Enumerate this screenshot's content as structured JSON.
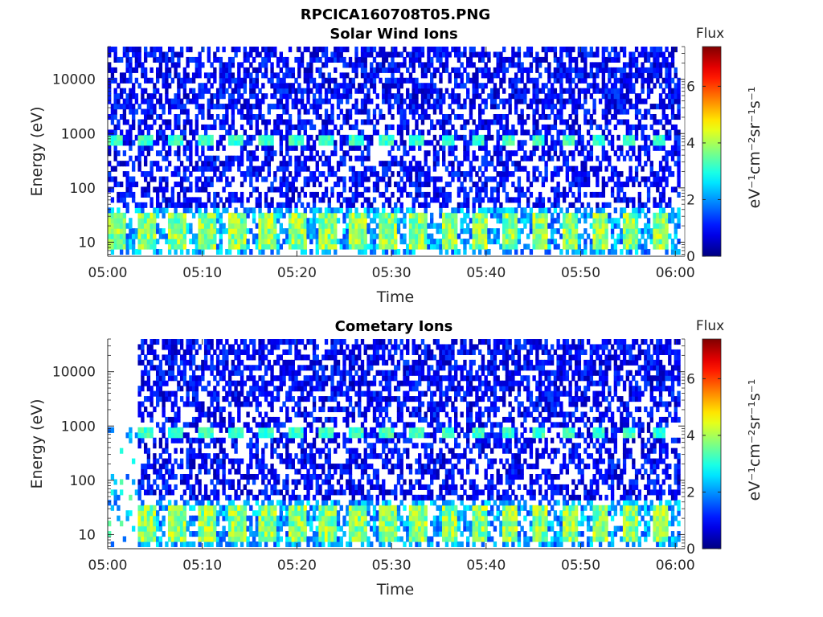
{
  "figure": {
    "title": "RPCICA160708T05.PNG"
  },
  "chart_data": [
    {
      "type": "heatmap",
      "title": "Solar Wind Ions",
      "xlabel": "Time",
      "ylabel": "Energy (eV)",
      "x_ticks": [
        "05:00",
        "05:10",
        "05:20",
        "05:30",
        "05:40",
        "05:50",
        "06:00"
      ],
      "x_range_minutes": [
        0,
        61
      ],
      "y_scale": "log",
      "y_ticks": [
        "10",
        "100",
        "1000",
        "10000"
      ],
      "y_tick_values": [
        10,
        100,
        1000,
        10000
      ],
      "y_range": [
        5.5,
        40000
      ],
      "colorbar": {
        "title": "Flux",
        "label": "eV⁻¹cm⁻²sr⁻¹s⁻¹",
        "ticks": [
          "0",
          "2",
          "4",
          "6"
        ],
        "tick_values": [
          0,
          2,
          4,
          6
        ],
        "range": [
          0,
          7.4
        ],
        "colormap": "jet"
      },
      "features": {
        "solar_wind_band_energy_eV": 700,
        "solar_wind_band_flux": 3.2,
        "low_energy_band_eV": [
          10,
          30
        ],
        "low_energy_band_flux": 3.5,
        "period_minutes": 3.2,
        "background_flux_range": [
          0.3,
          1.5
        ]
      },
      "grid": false,
      "legend": "colorbar-right"
    },
    {
      "type": "heatmap",
      "title": "Cometary Ions",
      "xlabel": "Time",
      "ylabel": "Energy (eV)",
      "x_ticks": [
        "05:00",
        "05:10",
        "05:20",
        "05:30",
        "05:40",
        "05:50",
        "06:00"
      ],
      "x_range_minutes": [
        0,
        61
      ],
      "y_scale": "log",
      "y_ticks": [
        "10",
        "100",
        "1000",
        "10000"
      ],
      "y_tick_values": [
        10,
        100,
        1000,
        10000
      ],
      "y_range": [
        5.5,
        40000
      ],
      "colorbar": {
        "title": "Flux",
        "label": "eV⁻¹cm⁻²sr⁻¹s⁻¹",
        "ticks": [
          "0",
          "2",
          "4",
          "6"
        ],
        "tick_values": [
          0,
          2,
          4,
          6
        ],
        "range": [
          0,
          7.4
        ],
        "colormap": "jet"
      },
      "features": {
        "data_gap_minutes": [
          0,
          3.3
        ],
        "solar_wind_band_energy_eV": 700,
        "solar_wind_band_flux": 3.2,
        "low_energy_band_eV": [
          10,
          30
        ],
        "low_energy_band_flux": 3.5,
        "period_minutes": 3.2,
        "background_flux_range": [
          0.3,
          1.5
        ]
      },
      "grid": false,
      "legend": "colorbar-right"
    }
  ]
}
